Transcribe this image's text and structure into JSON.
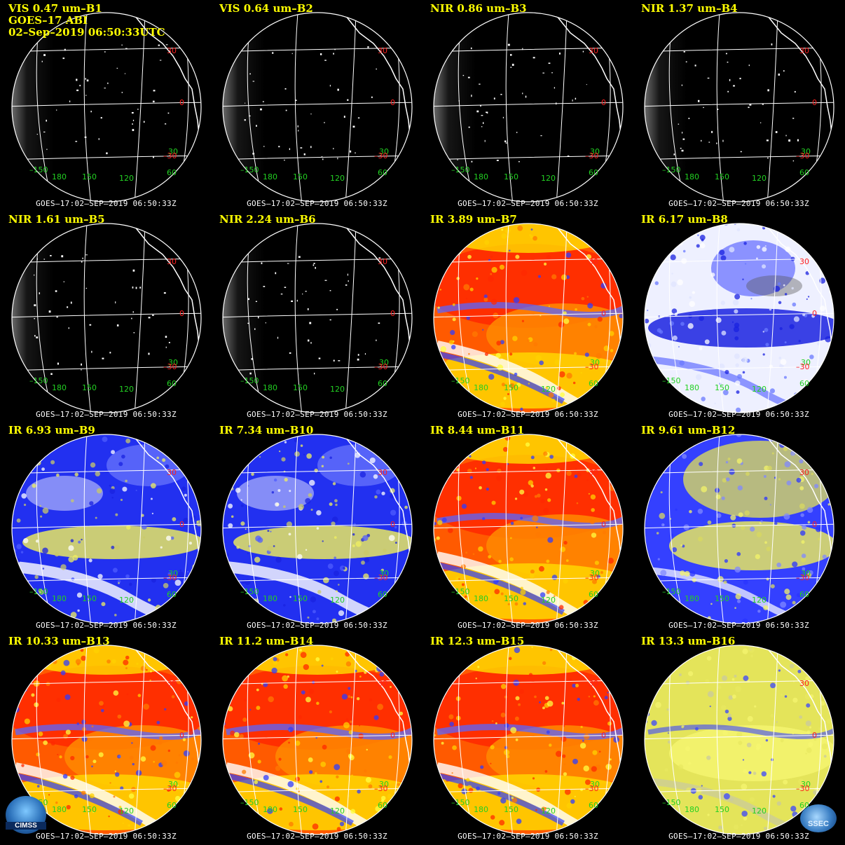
{
  "header": {
    "satellite_line": "GOES–17 ABI",
    "datetime_line": "02–Sep–2019 06:50:33UTC"
  },
  "panels": [
    {
      "title": "VIS 0.47 um–B1",
      "style": "vis"
    },
    {
      "title": "VIS 0.64 um–B2",
      "style": "vis"
    },
    {
      "title": "NIR 0.86 um–B3",
      "style": "vis"
    },
    {
      "title": "NIR 1.37 um–B4",
      "style": "vis"
    },
    {
      "title": "NIR 1.61 um–B5",
      "style": "vis"
    },
    {
      "title": "NIR 2.24 um–B6",
      "style": "vis"
    },
    {
      "title": "IR 3.89 um–B7",
      "style": "warm"
    },
    {
      "title": "IR 6.17 um–B8",
      "style": "wv-white"
    },
    {
      "title": "IR 6.93 um–B9",
      "style": "wv-blue"
    },
    {
      "title": "IR 7.34 um–B10",
      "style": "wv-blue"
    },
    {
      "title": "IR 8.44 um–B11",
      "style": "warm"
    },
    {
      "title": "IR 9.61 um–B12",
      "style": "ozone"
    },
    {
      "title": "IR 10.33 um–B13",
      "style": "warm"
    },
    {
      "title": "IR 11.2 um–B14",
      "style": "warm"
    },
    {
      "title": "IR 12.3 um–B15",
      "style": "warm"
    },
    {
      "title": "IR 13.3 um–B16",
      "style": "co2"
    }
  ],
  "footer_text": "GOES–17:02–SEP–2019  06:50:33Z",
  "grid_labels": {
    "lat_30": "30",
    "lat_0": "0",
    "lat_m30": "–30",
    "lat_30_green": "30",
    "lon_m150": "–150",
    "lon_180": "180",
    "lon_150": "150",
    "lon_120": "120",
    "lon_60": "60"
  },
  "logos": {
    "left": "CIMSS",
    "right": "SSEC"
  },
  "colors": {
    "title_yellow": "#ffff00",
    "grid_red": "#ff2020",
    "grid_green": "#22d022",
    "warm": [
      "#ff2a00",
      "#ff7a00",
      "#ffd000",
      "#ffff40",
      "#2f3cff"
    ],
    "wv_blue": [
      "#1a22e0",
      "#4f5cff",
      "#c9c96a",
      "#f0f060",
      "#ffffff"
    ],
    "wv_white": [
      "#ffffff",
      "#dfe4ff",
      "#6a7aff",
      "#1a22e0"
    ],
    "ozone": [
      "#2a34ff",
      "#8088ff",
      "#d8d860",
      "#f3f36a"
    ],
    "co2": [
      "#e8e860",
      "#f5f570",
      "#c9c9a0",
      "#3a46ff"
    ]
  }
}
